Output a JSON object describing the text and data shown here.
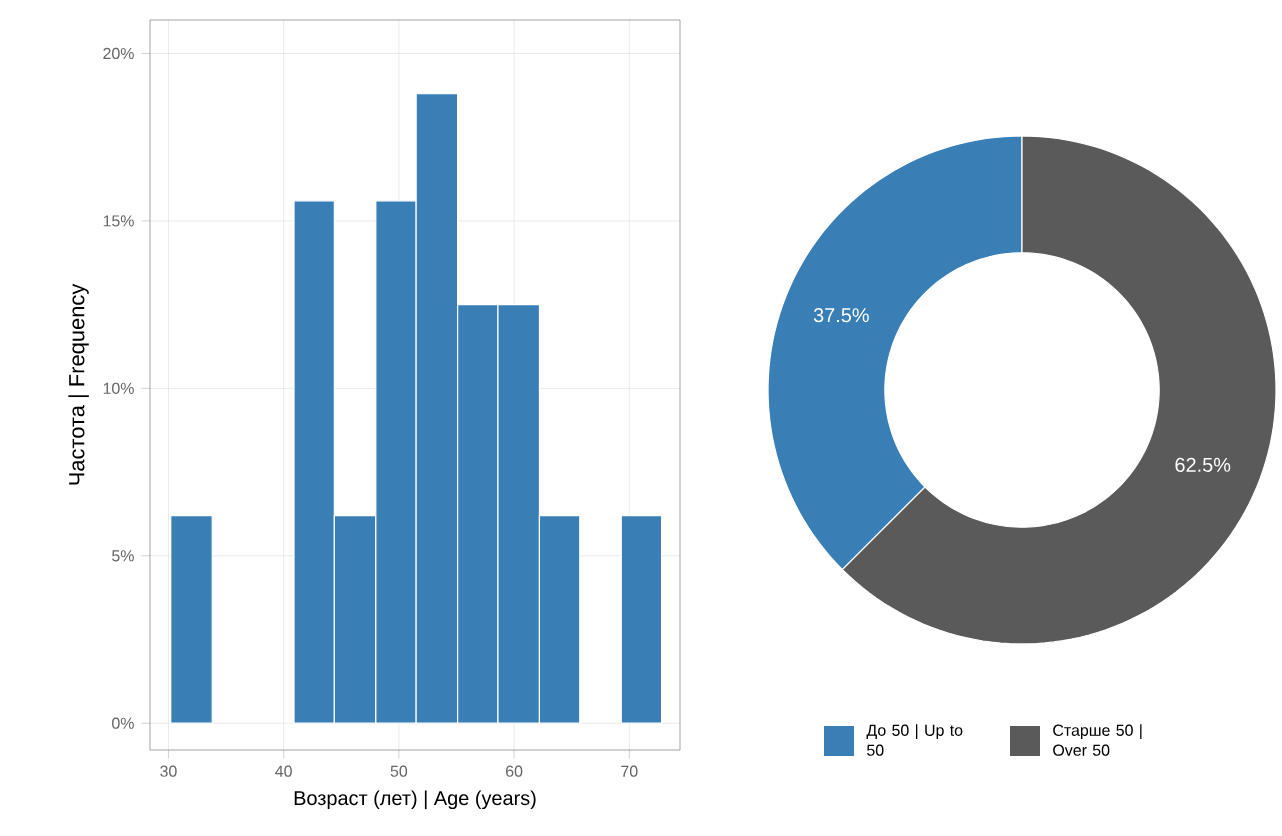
{
  "chart_data": [
    {
      "type": "histogram",
      "xlabel": "Возраст (лет) | Age (years)",
      "ylabel": "Частота | Frequency",
      "bins": [
        30.2,
        33.8,
        40.9,
        44.4,
        48.0,
        51.5,
        55.1,
        58.6,
        62.2,
        65.7,
        69.3,
        72.8
      ],
      "values": [
        6.2,
        0,
        15.6,
        6.2,
        15.6,
        18.8,
        12.5,
        12.5,
        6.2,
        0,
        6.2
      ],
      "color": "#3a7eb6",
      "xlim": [
        28.4,
        74.4
      ],
      "xticks": [
        30,
        40,
        50,
        60,
        70
      ],
      "ylim": [
        -0.8,
        21
      ],
      "yticks": [
        {
          "value": 0,
          "label": "0%"
        },
        {
          "value": 5,
          "label": "5%"
        },
        {
          "value": 10,
          "label": "10%"
        },
        {
          "value": 15,
          "label": "15%"
        },
        {
          "value": 20,
          "label": "20%"
        }
      ],
      "grid": true
    },
    {
      "type": "donut",
      "categories": [
        "До 50 | Up to 50",
        "Старше 50 | Over 50"
      ],
      "values": [
        37.5,
        62.5
      ],
      "colors": [
        "#3a7eb6",
        "#5a5a5a"
      ],
      "value_labels": [
        "37.5%",
        "62.5%"
      ],
      "legend": "bottom"
    }
  ]
}
